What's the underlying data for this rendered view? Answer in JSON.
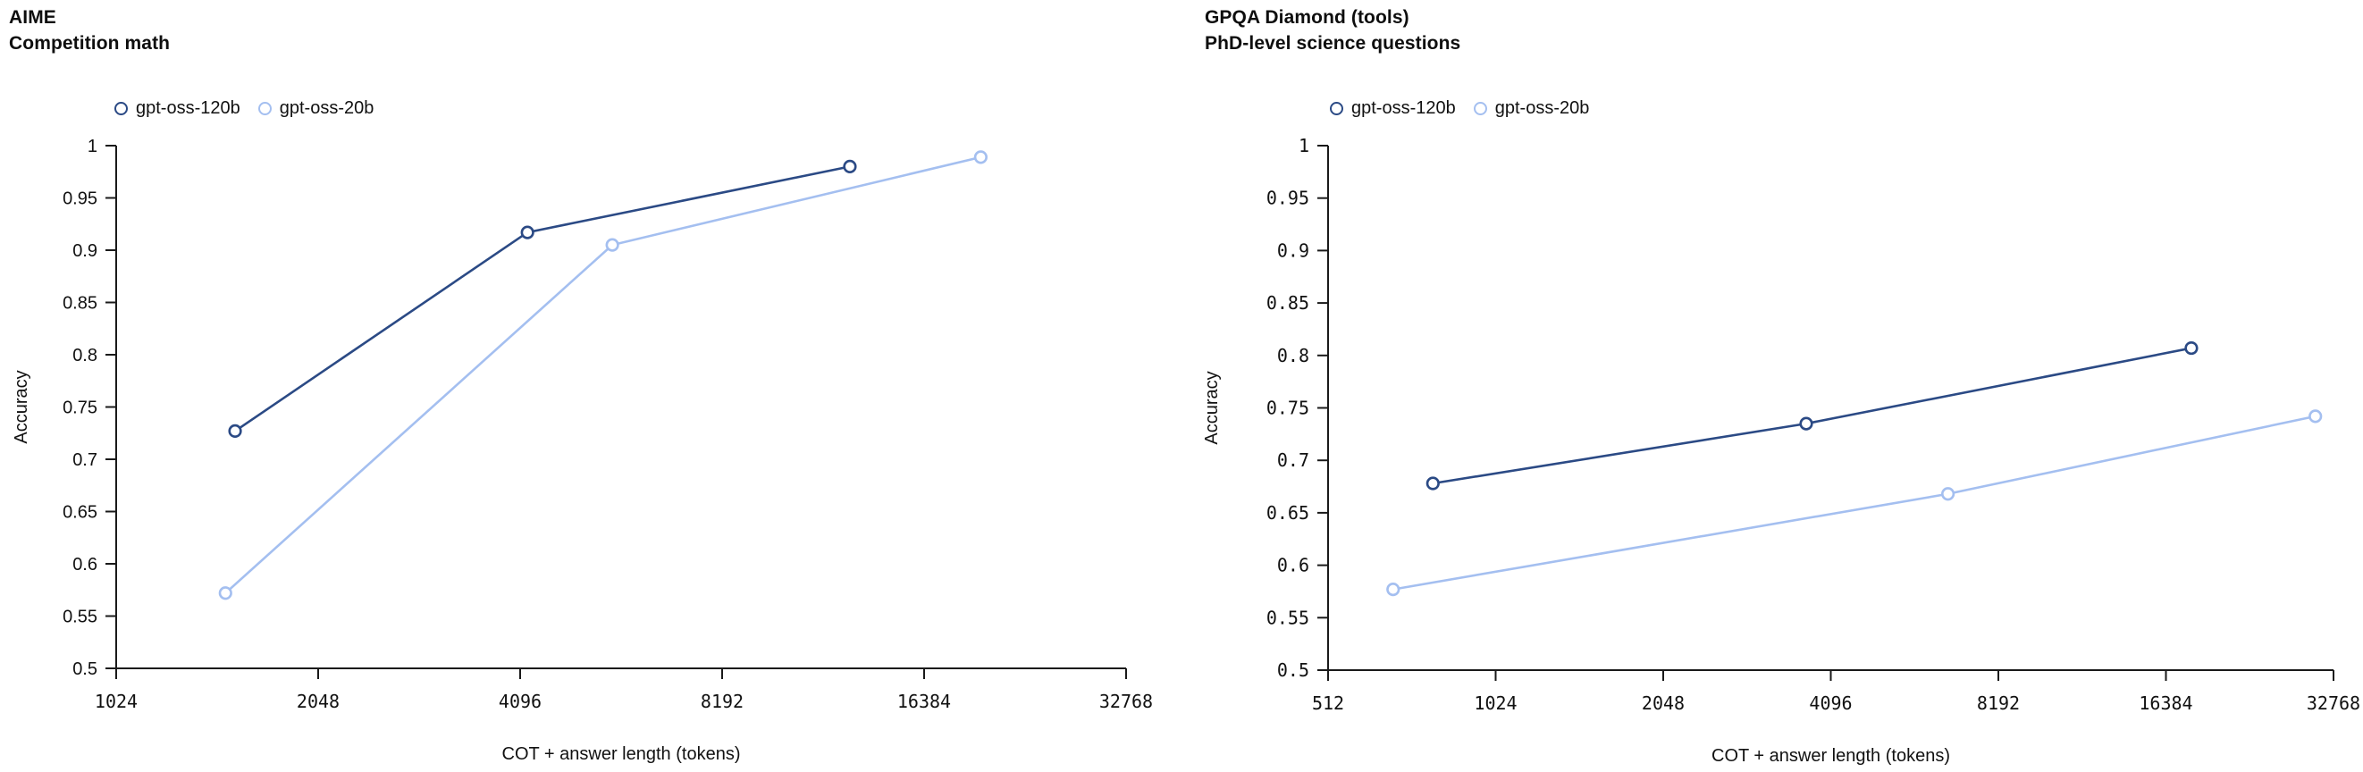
{
  "chart_data": [
    {
      "type": "line",
      "title": "AIME",
      "subtitle": "Competition math",
      "xlabel": "COT + answer length (tokens)",
      "ylabel": "Accuracy",
      "x_scale": "log2",
      "xlim": [
        1024,
        32768
      ],
      "ylim": [
        0.5,
        1
      ],
      "x_ticks": [
        "1024",
        "2048",
        "4096",
        "8192",
        "16384",
        "32768"
      ],
      "y_ticks": [
        "0.5",
        "0.55",
        "0.6",
        "0.65",
        "0.7",
        "0.75",
        "0.8",
        "0.85",
        "0.9",
        "0.95",
        "1"
      ],
      "grid": false,
      "legend_position": "top-left",
      "series": [
        {
          "name": "gpt-oss-120b",
          "color": "#2b4a85",
          "x": [
            1540,
            4200,
            12700
          ],
          "y": [
            0.727,
            0.917,
            0.98
          ]
        },
        {
          "name": "gpt-oss-20b",
          "color": "#a4bff0",
          "x": [
            1490,
            5620,
            19900
          ],
          "y": [
            0.572,
            0.905,
            0.989
          ]
        }
      ]
    },
    {
      "type": "line",
      "title": "GPQA Diamond (tools)",
      "subtitle": "PhD-level science questions",
      "xlabel": "COT + answer length (tokens)",
      "ylabel": "Accuracy",
      "x_scale": "log2",
      "xlim": [
        512,
        32768
      ],
      "ylim": [
        0.5,
        1
      ],
      "x_ticks": [
        "512",
        "1024",
        "2048",
        "4096",
        "8192",
        "16384",
        "32768"
      ],
      "y_ticks": [
        "0.5",
        "0.55",
        "0.6",
        "0.65",
        "0.7",
        "0.75",
        "0.8",
        "0.85",
        "0.9",
        "0.95",
        "1"
      ],
      "grid": false,
      "legend_position": "top-left",
      "series": [
        {
          "name": "gpt-oss-120b",
          "color": "#2b4a85",
          "x": [
            790,
            3700,
            18200
          ],
          "y": [
            0.678,
            0.735,
            0.807
          ]
        },
        {
          "name": "gpt-oss-20b",
          "color": "#a4bff0",
          "x": [
            670,
            6650,
            30400
          ],
          "y": [
            0.577,
            0.668,
            0.742
          ]
        }
      ]
    }
  ]
}
